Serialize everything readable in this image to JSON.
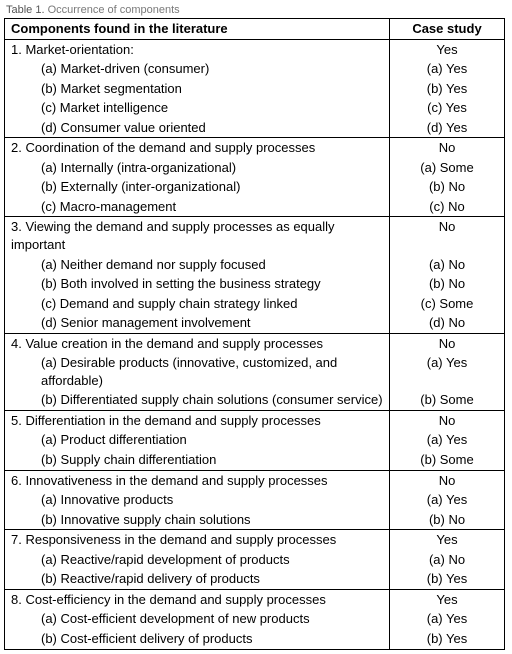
{
  "caption_label": "Table 1.",
  "caption_text": "Occurrence of components",
  "headers": {
    "left": "Components found in the literature",
    "right": "Case study"
  },
  "groups": [
    {
      "title": "1. Market-orientation:",
      "title_right": "Yes",
      "subs": [
        {
          "l": "(a) Market-driven (consumer)",
          "r": "(a) Yes"
        },
        {
          "l": "(b) Market segmentation",
          "r": "(b) Yes"
        },
        {
          "l": "(c) Market intelligence",
          "r": "(c) Yes"
        },
        {
          "l": "(d) Consumer value oriented",
          "r": "(d) Yes"
        }
      ]
    },
    {
      "title": "2. Coordination of the demand and supply processes",
      "title_right": "No",
      "subs": [
        {
          "l": "(a) Internally (intra-organizational)",
          "r": "(a) Some"
        },
        {
          "l": "(b) Externally (inter-organizational)",
          "r": "(b) No"
        },
        {
          "l": "(c) Macro-management",
          "r": "(c) No"
        }
      ]
    },
    {
      "title": "3. Viewing the demand and supply processes as equally important",
      "title_right": "No",
      "subs": [
        {
          "l": "(a) Neither demand nor supply focused",
          "r": "(a) No"
        },
        {
          "l": "(b) Both involved in setting the business strategy",
          "r": "(b) No"
        },
        {
          "l": "(c) Demand and supply chain strategy linked",
          "r": "(c) Some"
        },
        {
          "l": "(d) Senior management involvement",
          "r": "(d) No"
        }
      ]
    },
    {
      "title": "4. Value creation in the demand and supply processes",
      "title_right": "No",
      "subs": [
        {
          "l": "(a) Desirable products (innovative, customized, and affordable)",
          "r": "(a) Yes"
        },
        {
          "l": "(b) Differentiated supply chain solutions (consumer service)",
          "r": "(b) Some"
        }
      ]
    },
    {
      "title": "5. Differentiation in the demand and supply processes",
      "title_right": "No",
      "subs": [
        {
          "l": "(a) Product differentiation",
          "r": "(a) Yes"
        },
        {
          "l": "(b) Supply chain differentiation",
          "r": "(b) Some"
        }
      ]
    },
    {
      "title": "6. Innovativeness in the demand and supply processes",
      "title_right": "No",
      "subs": [
        {
          "l": "(a) Innovative products",
          "r": "(a) Yes"
        },
        {
          "l": "(b) Innovative supply chain solutions",
          "r": "(b) No"
        }
      ]
    },
    {
      "title": "7. Responsiveness in the demand and supply processes",
      "title_right": "Yes",
      "subs": [
        {
          "l": "(a) Reactive/rapid development of products",
          "r": "(a) No"
        },
        {
          "l": "(b) Reactive/rapid delivery of products",
          "r": "(b) Yes"
        }
      ]
    },
    {
      "title": "8. Cost-efficiency in the demand and supply processes",
      "title_right": "Yes",
      "subs": [
        {
          "l": "(a) Cost-efficient development of new products",
          "r": "(a) Yes"
        },
        {
          "l": "(b) Cost-efficient delivery of products",
          "r": "(b) Yes"
        }
      ]
    }
  ]
}
